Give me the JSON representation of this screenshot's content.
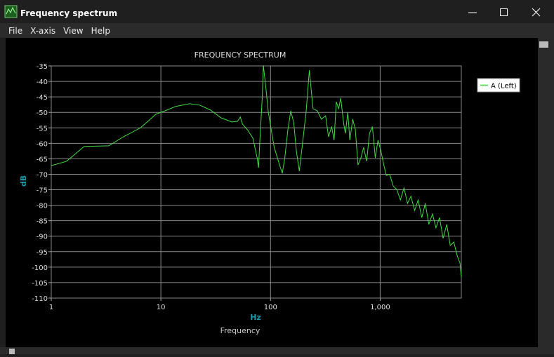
{
  "window": {
    "title": "Frequency spectrum"
  },
  "menu": [
    "File",
    "X-axis",
    "View",
    "Help"
  ],
  "chart_data": {
    "type": "line",
    "title": "FREQUENCY SPECTRUM",
    "xlabel": "Frequency",
    "x_unit": "Hz",
    "ylabel": "dB",
    "x_scale": "log",
    "grid": true,
    "legend": "top-right",
    "xlim": [
      1,
      5500
    ],
    "xticks": [
      1,
      10,
      100,
      {
        "value": 1000,
        "label": "1,000"
      }
    ],
    "ylim": [
      -110,
      -35
    ],
    "yticks": [
      -35,
      -40,
      -45,
      -50,
      -55,
      -60,
      -65,
      -70,
      -75,
      -80,
      -85,
      -90,
      -95,
      -100,
      -105,
      -110
    ],
    "x": [
      1,
      1.38,
      2,
      3.35,
      4.5,
      6.5,
      7.55,
      9,
      10.9,
      13.6,
      18.3,
      22.8,
      28.5,
      35.5,
      44.4,
      50,
      53,
      55.5,
      61.5,
      69,
      75.5,
      77.7,
      80,
      84,
      86,
      90,
      95.5,
      108,
      121,
      128,
      135,
      144,
      153,
      163,
      172,
      183,
      194,
      211,
      226,
      235,
      244,
      267,
      291,
      318,
      338,
      361,
      380,
      398,
      418,
      437,
      464,
      482,
      507,
      529,
      562,
      594,
      628,
      668,
      707,
      753,
      800,
      850,
      903,
      955,
      1015,
      1080,
      1140,
      1220,
      1317,
      1420,
      1530,
      1650,
      1776,
      1910,
      2065,
      2220,
      2400,
      2580,
      2780,
      3000,
      3230,
      3480,
      3750,
      4050,
      4360,
      4700,
      5050,
      5350,
      5500
    ],
    "series": [
      {
        "name": "A (Left)",
        "color": "#3fdc3f",
        "values": [
          -67.2,
          -65.8,
          -61,
          -60.8,
          -58,
          -55,
          -53,
          -50.6,
          -49.5,
          -48.1,
          -47.2,
          -47.7,
          -49.3,
          -51.8,
          -53.1,
          -52.9,
          -51.5,
          -53.8,
          -55.6,
          -58.3,
          -64.7,
          -67.9,
          -59,
          -45.4,
          -34.8,
          -40.9,
          -50,
          -61.3,
          -67,
          -69.7,
          -64.7,
          -55.6,
          -49.5,
          -53.4,
          -62.4,
          -69,
          -61.3,
          -50,
          -36.4,
          -42.7,
          -48.8,
          -49.5,
          -52.2,
          -51.1,
          -57.9,
          -54.6,
          -59,
          -46.6,
          -48.8,
          -45.4,
          -53.4,
          -56.8,
          -50,
          -59,
          -52.2,
          -55.6,
          -67,
          -64.7,
          -61.3,
          -65.8,
          -56.8,
          -54.6,
          -64.7,
          -59,
          -62.4,
          -67,
          -70.4,
          -70,
          -73.8,
          -74.9,
          -78.3,
          -74.4,
          -79.4,
          -77.1,
          -81.7,
          -78.3,
          -84,
          -79.4,
          -86.2,
          -82.8,
          -87.3,
          -84,
          -90.7,
          -86.2,
          -93,
          -91.9,
          -96.4,
          -98.7,
          -103.2
        ]
      }
    ]
  }
}
